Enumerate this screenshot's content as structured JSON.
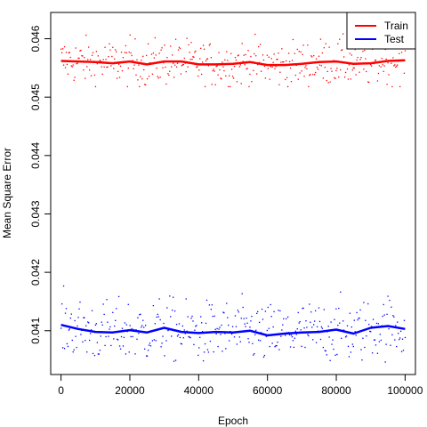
{
  "chart_data": {
    "type": "scatter",
    "title": "",
    "xlabel": "Epoch",
    "ylabel": "Mean Square Error",
    "xlim": [
      -3000,
      103000
    ],
    "ylim": [
      0.04025,
      0.04645
    ],
    "xticks": [
      0,
      20000,
      40000,
      60000,
      80000,
      100000
    ],
    "xtick_labels": [
      "0",
      "20000",
      "40000",
      "60000",
      "80000",
      "100000"
    ],
    "yticks": [
      0.041,
      0.042,
      0.043,
      0.044,
      0.045,
      0.046
    ],
    "ytick_labels": [
      "0.041",
      "0.042",
      "0.043",
      "0.044",
      "0.045",
      "0.046"
    ],
    "grid": false,
    "legend_position": "top-right",
    "legend": [
      {
        "label": "Train",
        "color": "#ff0000"
      },
      {
        "label": "Test",
        "color": "#0000ff"
      }
    ],
    "series": [
      {
        "name": "Train",
        "color": "#ff0000",
        "points_per_series": 400,
        "scatter_spread": [
          0.04518,
          0.04627
        ],
        "smooth_x": [
          0,
          5000,
          10000,
          15000,
          20000,
          25000,
          30000,
          35000,
          40000,
          45000,
          50000,
          55000,
          60000,
          65000,
          70000,
          75000,
          80000,
          85000,
          90000,
          95000,
          100000
        ],
        "smooth_y": [
          0.04562,
          0.04561,
          0.0456,
          0.04558,
          0.04561,
          0.04556,
          0.04561,
          0.04561,
          0.04556,
          0.04556,
          0.04557,
          0.0456,
          0.04555,
          0.04555,
          0.04557,
          0.0456,
          0.04561,
          0.04557,
          0.04558,
          0.04562,
          0.04563
        ]
      },
      {
        "name": "Test",
        "color": "#0000ff",
        "points_per_series": 400,
        "scatter_spread": [
          0.04045,
          0.04189
        ],
        "smooth_x": [
          0,
          5000,
          10000,
          15000,
          20000,
          25000,
          30000,
          35000,
          40000,
          45000,
          50000,
          55000,
          60000,
          65000,
          70000,
          75000,
          80000,
          85000,
          90000,
          95000,
          100000
        ],
        "smooth_y": [
          0.0411,
          0.04103,
          0.04098,
          0.04097,
          0.04101,
          0.04097,
          0.04105,
          0.04098,
          0.04096,
          0.04098,
          0.04097,
          0.041,
          0.04092,
          0.04095,
          0.04097,
          0.04098,
          0.04102,
          0.04095,
          0.04105,
          0.04108,
          0.04103
        ]
      }
    ]
  }
}
